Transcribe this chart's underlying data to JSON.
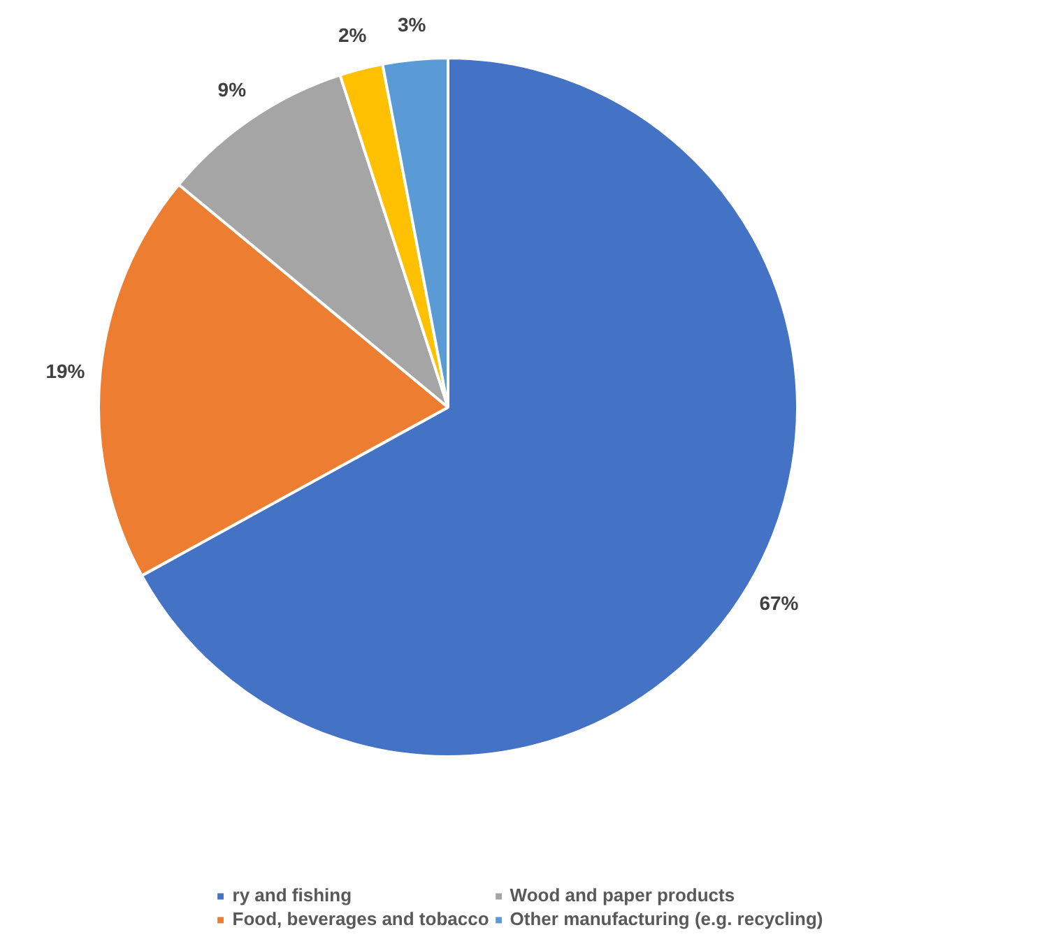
{
  "chart_data": {
    "type": "pie",
    "categories": [
      "ry and fishing",
      "Food, beverages and tobacco",
      "Wood and paper products",
      null,
      "Other manufacturing (e.g. recycling)"
    ],
    "values": [
      67,
      19,
      9,
      2,
      3
    ],
    "colors": [
      "#4472c4",
      "#ed7d31",
      "#a5a5a5",
      "#ffc000",
      "#5b9bd5"
    ],
    "value_labels": [
      "67%",
      "19%",
      "9%",
      "2%",
      "3%"
    ],
    "legend": "bottom"
  }
}
